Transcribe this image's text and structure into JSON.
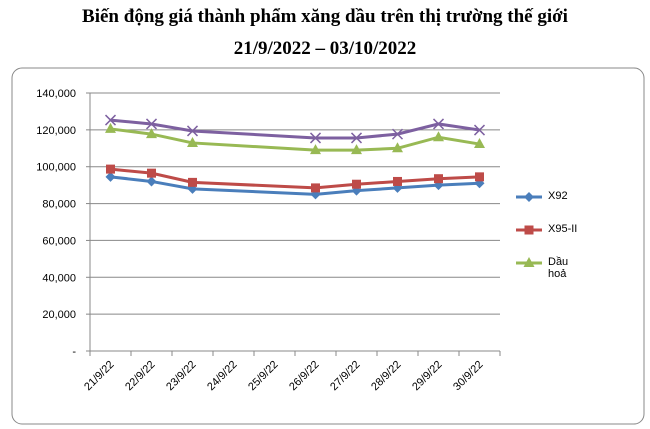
{
  "chart_data": {
    "type": "line",
    "title": "Biến động giá thành phẩm xăng dầu trên thị trường thế giới",
    "subtitle": "21/9/2022 – 03/10/2022",
    "categories": [
      "21/9/22",
      "22/9/22",
      "23/9/22",
      "24/9/22",
      "25/9/22",
      "26/9/22",
      "27/9/22",
      "28/9/22",
      "29/9/22",
      "30/9/22"
    ],
    "span_gaps": true,
    "series": [
      {
        "name": "X92",
        "color": "#4a7ebb",
        "marker": "diamond",
        "values": [
          94500,
          92000,
          88000,
          null,
          null,
          85000,
          87000,
          88500,
          90000,
          91000
        ]
      },
      {
        "name": "X95-II",
        "color": "#be4b48",
        "marker": "square",
        "values": [
          98700,
          96500,
          91500,
          null,
          null,
          88500,
          90500,
          92000,
          93500,
          94500
        ]
      },
      {
        "name": "Dầu hoả",
        "color": "#98b954",
        "marker": "triangle",
        "values": [
          120500,
          117700,
          112900,
          null,
          null,
          109000,
          109000,
          110000,
          116000,
          112300
        ]
      },
      {
        "name": null,
        "color": "#7d60a0",
        "marker": "x",
        "values": [
          125300,
          123200,
          119400,
          null,
          null,
          115600,
          115600,
          117700,
          123200,
          119900
        ]
      }
    ],
    "ylim": [
      0,
      140000
    ],
    "yticks": [
      {
        "value": 0,
        "label": "-"
      },
      {
        "value": 20000,
        "label": "20,000"
      },
      {
        "value": 40000,
        "label": "40,000"
      },
      {
        "value": 60000,
        "label": "60,000"
      },
      {
        "value": 80000,
        "label": "80,000"
      },
      {
        "value": 100000,
        "label": "100,000"
      },
      {
        "value": 120000,
        "label": "120,000"
      },
      {
        "value": 140000,
        "label": "140,000"
      }
    ],
    "grid": true
  }
}
